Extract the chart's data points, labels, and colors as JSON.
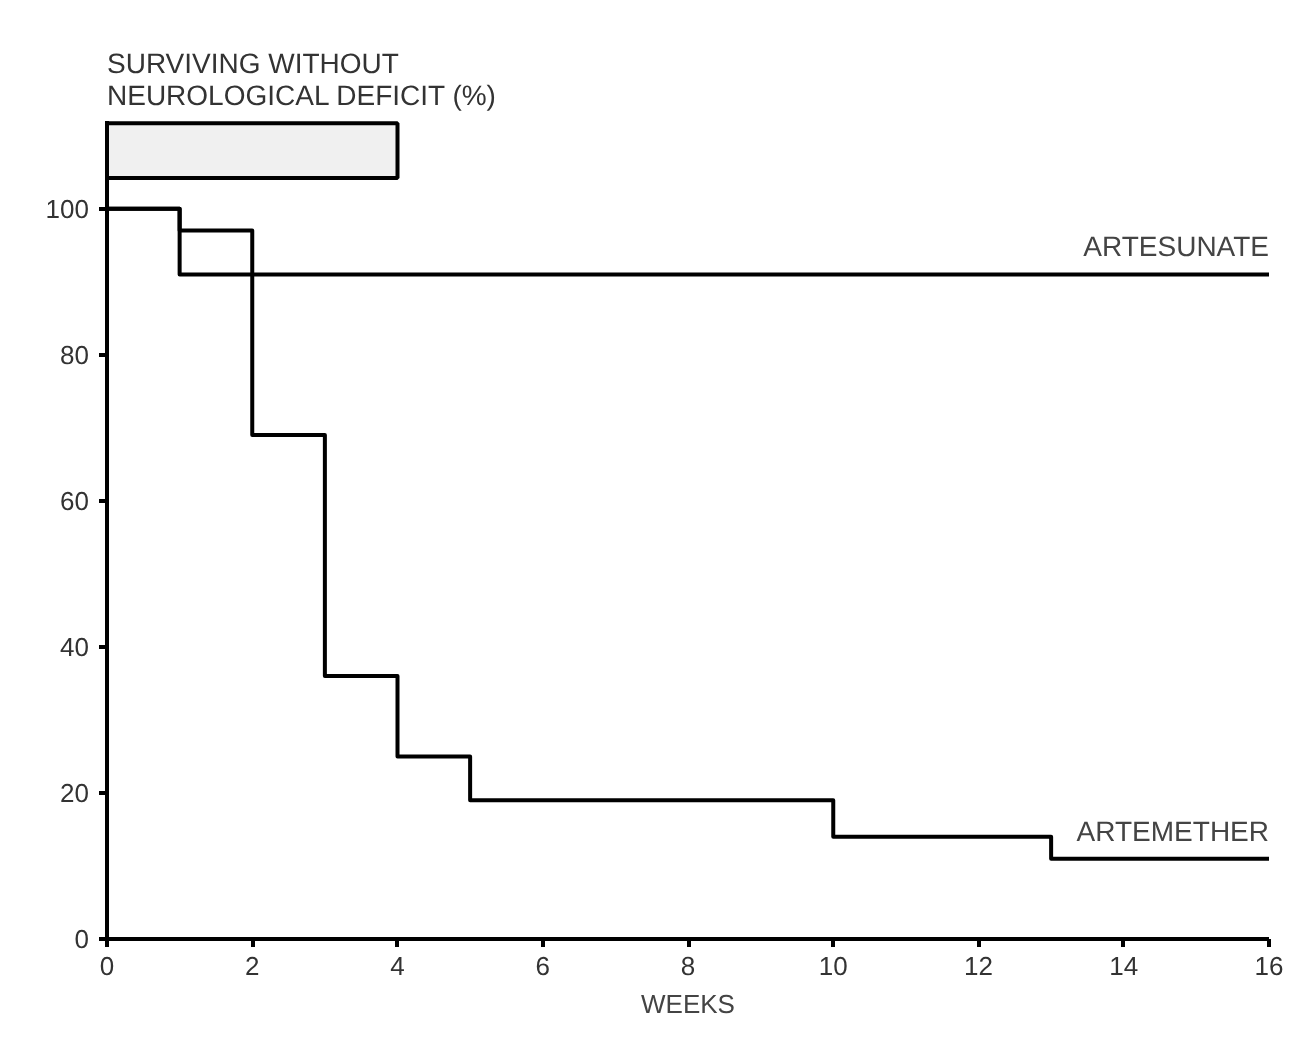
{
  "chart_data": {
    "type": "step",
    "ylabel": "SURVIVING WITHOUT\nNEUROLOGICAL DEFICIT (%)",
    "xlabel": "WEEKS",
    "series": [
      {
        "name": "ARTESUNATE",
        "color": "#000000",
        "x": [
          0,
          1,
          16
        ],
        "values": [
          100,
          91,
          91
        ]
      },
      {
        "name": "ARTEMETHER",
        "color": "#000000",
        "x": [
          0,
          1,
          2,
          3,
          4,
          5,
          10,
          13,
          16
        ],
        "values": [
          100,
          97,
          69,
          36,
          25,
          19,
          14,
          11,
          11
        ]
      }
    ],
    "bands": [
      {
        "axis": "x",
        "from": 0,
        "to": 4,
        "color": "#f0f0f0"
      }
    ],
    "xlim": [
      0,
      16
    ],
    "xticks": [
      0,
      2,
      4,
      6,
      8,
      10,
      12,
      14,
      16
    ],
    "ylim": [
      0,
      112
    ],
    "yticks": [
      0,
      20,
      40,
      60,
      80,
      100
    ],
    "grid": false
  }
}
